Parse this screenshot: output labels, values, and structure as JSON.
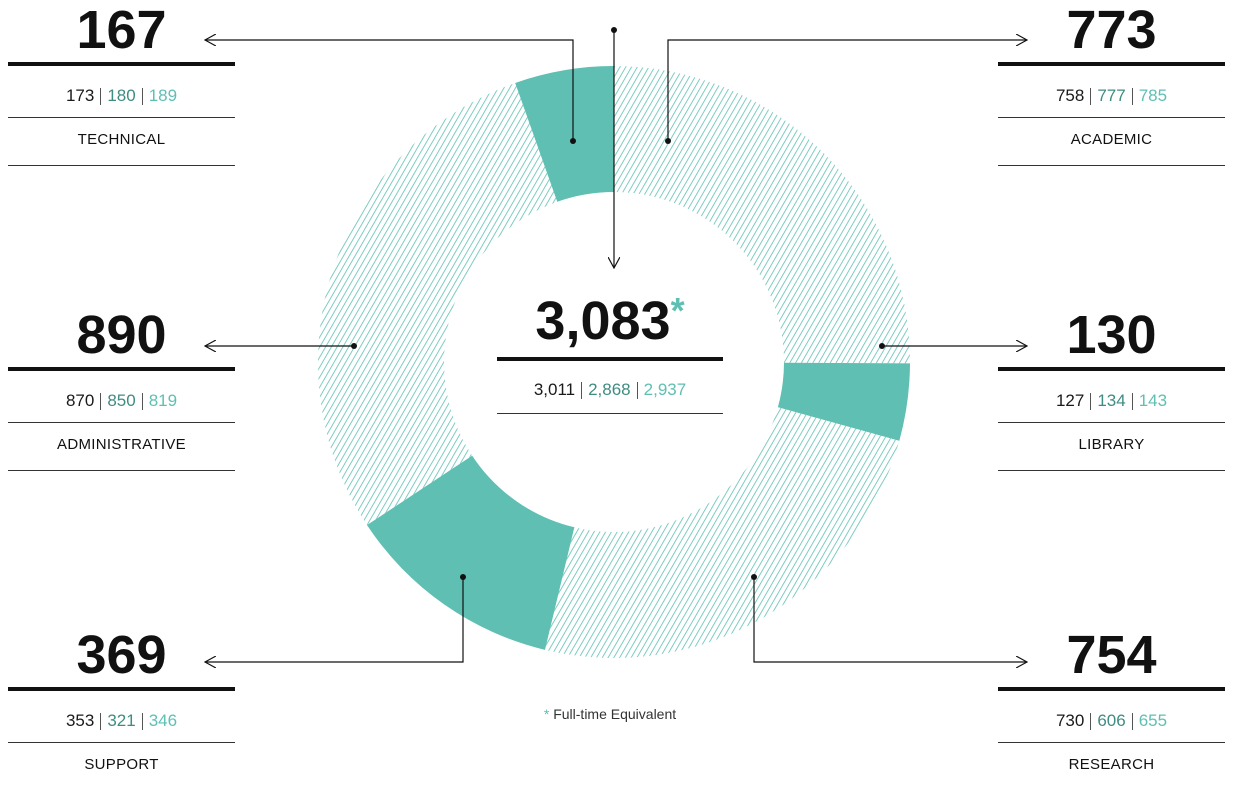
{
  "chart_data": {
    "type": "donut",
    "categories": [
      "ACADEMIC",
      "LIBRARY",
      "RESEARCH",
      "SUPPORT",
      "ADMINISTRATIVE",
      "TECHNICAL"
    ],
    "values": [
      773,
      130,
      754,
      369,
      890,
      167
    ],
    "history": [
      [
        758,
        777,
        785
      ],
      [
        127,
        134,
        143
      ],
      [
        730,
        606,
        655
      ],
      [
        353,
        321,
        346
      ],
      [
        870,
        850,
        819
      ],
      [
        173,
        180,
        189
      ]
    ],
    "history_colors": [
      "#1a1a1a",
      "#3f8c82",
      "#5fbfb3"
    ],
    "color": "#5fbfb3",
    "fill_styles": [
      "hatched",
      "solid",
      "hatched",
      "solid",
      "hatched",
      "solid"
    ],
    "total": {
      "value": 3083,
      "label": "3,083"
    },
    "total_history": [
      {
        "value": 3011,
        "label": "3,011"
      },
      {
        "value": 2868,
        "label": "2,868"
      },
      {
        "value": 2937,
        "label": "2,937"
      }
    ],
    "footnote": {
      "marker": "*",
      "text": "Full-time Equivalent"
    }
  }
}
